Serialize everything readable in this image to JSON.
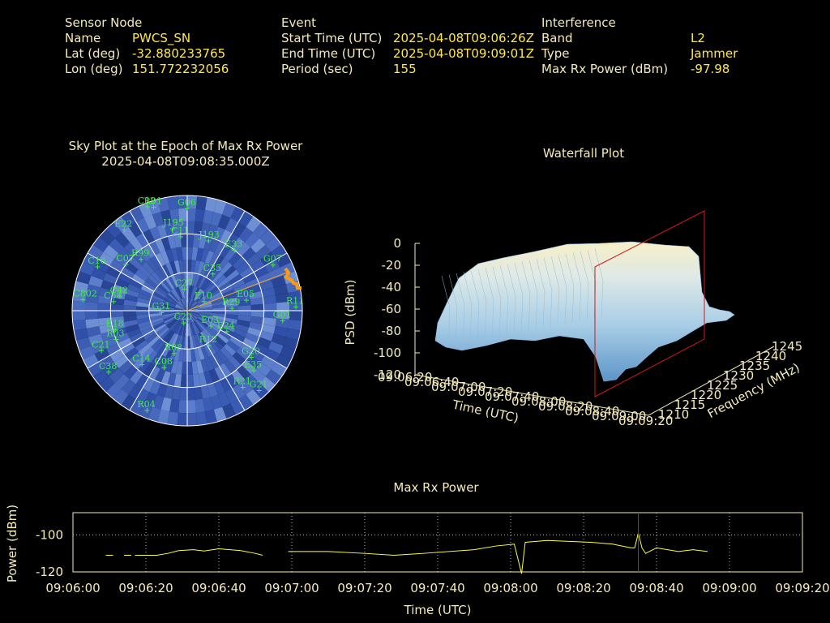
{
  "sensor": {
    "title": "Sensor Node",
    "rows": [
      {
        "label": "Name",
        "value": "PWCS_SN"
      },
      {
        "label": "Lat (deg)",
        "value": "-32.880233765"
      },
      {
        "label": "Lon (deg)",
        "value": "151.772232056"
      }
    ]
  },
  "event": {
    "title": "Event",
    "rows": [
      {
        "label": "Start Time (UTC)",
        "value": "2025-04-08T09:06:26Z"
      },
      {
        "label": "End Time (UTC)",
        "value": "2025-04-08T09:09:01Z"
      },
      {
        "label": "Period (sec)",
        "value": "155"
      }
    ]
  },
  "interference": {
    "title": "Interference",
    "rows": [
      {
        "label": "Band",
        "value": "L2"
      },
      {
        "label": "Type",
        "value": "Jammer"
      },
      {
        "label": "Max Rx Power (dBm)",
        "value": "-97.98"
      }
    ]
  },
  "skyplot": {
    "title": "Sky Plot at the Epoch of Max Rx Power",
    "subtitle": "2025-04-08T09:08:35.000Z",
    "satellites": [
      {
        "id": "G06",
        "az": 0,
        "el": 10
      },
      {
        "id": "R91",
        "az": 342,
        "el": 5
      },
      {
        "id": "C12",
        "az": 339,
        "el": 3
      },
      {
        "id": "E22",
        "az": 322,
        "el": 10
      },
      {
        "id": "J195",
        "az": 350,
        "el": 25
      },
      {
        "id": "C11",
        "az": 355,
        "el": 32
      },
      {
        "id": "J193",
        "az": 17,
        "el": 33
      },
      {
        "id": "G07",
        "az": 62,
        "el": 14
      },
      {
        "id": "E33",
        "az": 38,
        "el": 30
      },
      {
        "id": "C35",
        "az": 35,
        "el": 55
      },
      {
        "id": "E05",
        "az": 80,
        "el": 43
      },
      {
        "id": "R11",
        "az": 88,
        "el": 5
      },
      {
        "id": "G01",
        "az": 96,
        "el": 15
      },
      {
        "id": "E24",
        "az": 118,
        "el": 55
      },
      {
        "id": "R12",
        "az": 148,
        "el": 58
      },
      {
        "id": "G20",
        "az": 126,
        "el": 28
      },
      {
        "id": "E35",
        "az": 132,
        "el": 20
      },
      {
        "id": "R21",
        "az": 144,
        "el": 16
      },
      {
        "id": "G21",
        "az": 138,
        "el": 6
      },
      {
        "id": "R04",
        "az": 202,
        "el": 6
      },
      {
        "id": "C38",
        "az": 232,
        "el": 12
      },
      {
        "id": "C14",
        "az": 220,
        "el": 35
      },
      {
        "id": "C21",
        "az": 245,
        "el": 16
      },
      {
        "id": "R03",
        "az": 248,
        "el": 30
      },
      {
        "id": "E18",
        "az": 255,
        "el": 32
      },
      {
        "id": "C58",
        "az": 277,
        "el": 32
      },
      {
        "id": "C42",
        "az": 282,
        "el": 36
      },
      {
        "id": "C802",
        "az": 276,
        "el": 8
      },
      {
        "id": "C16",
        "az": 296,
        "el": 12
      },
      {
        "id": "C07",
        "az": 307,
        "el": 30
      },
      {
        "id": "R99",
        "az": 318,
        "el": 36
      },
      {
        "id": "C27",
        "az": 353,
        "el": 73
      },
      {
        "id": "E10",
        "az": 62,
        "el": 75
      },
      {
        "id": "R29",
        "az": 87,
        "el": 55
      },
      {
        "id": "C08",
        "az": 202,
        "el": 42
      },
      {
        "id": "R08",
        "az": 197,
        "el": 55
      },
      {
        "id": "G31",
        "az": 266,
        "el": 70
      },
      {
        "id": "E03",
        "az": 123,
        "el": 68
      },
      {
        "id": "C20",
        "az": 196,
        "el": 80
      }
    ]
  },
  "waterfall": {
    "title": "Waterfall Plot",
    "z_label": "PSD (dBm)",
    "z_ticks": [
      "0",
      "-20",
      "-40",
      "-60",
      "-80",
      "-100",
      "-120"
    ],
    "time_label": "Time (UTC)",
    "freq_label": "Frequency (MHz)",
    "freq_ticks": [
      "1210",
      "1215",
      "1220",
      "1225",
      "1230",
      "1235",
      "1240",
      "1245"
    ],
    "time_ticks": [
      "09:06:20",
      "09:06:40",
      "09:07:00",
      "09:07:20",
      "09:07:40",
      "09:08:00",
      "09:08:20",
      "09:08:40",
      "09:09:00",
      "09:09:20"
    ]
  },
  "chart_data": {
    "type": "line",
    "title": "Max Rx Power",
    "xlabel": "Time (UTC)",
    "ylabel": "Power (dBm)",
    "x_ticks": [
      "09:06:00",
      "09:06:20",
      "09:06:40",
      "09:07:00",
      "09:07:20",
      "09:07:40",
      "09:08:00",
      "09:08:20",
      "09:08:40",
      "09:09:00",
      "09:09:20"
    ],
    "y_ticks": [
      -100,
      -120
    ],
    "xlim_sec": [
      0,
      200
    ],
    "ylim": [
      -120,
      -88
    ],
    "grid": true,
    "marker_time_sec": 155,
    "series": [
      {
        "color": "#ffff40",
        "segments": [
          [
            [
              9,
              -111
            ],
            [
              11,
              -111
            ]
          ],
          [
            [
              14,
              -111
            ],
            [
              16,
              -111
            ]
          ],
          [
            [
              17,
              -111
            ],
            [
              23,
              -111
            ],
            [
              26,
              -110
            ],
            [
              29,
              -108.5
            ],
            [
              33,
              -108
            ],
            [
              36,
              -108.7
            ],
            [
              40,
              -107.5
            ],
            [
              46,
              -108.5
            ],
            [
              50,
              -110
            ],
            [
              52,
              -111
            ]
          ],
          [
            [
              59,
              -109
            ],
            [
              70,
              -109
            ],
            [
              80,
              -110
            ],
            [
              88,
              -111
            ],
            [
              96,
              -110
            ],
            [
              110,
              -108
            ],
            [
              116,
              -106
            ],
            [
              121,
              -105
            ],
            [
              123,
              -121
            ],
            [
              124,
              -104
            ],
            [
              130,
              -103
            ],
            [
              142,
              -104
            ],
            [
              148,
              -105
            ],
            [
              153,
              -107
            ],
            [
              154,
              -107
            ],
            [
              155,
              -99
            ],
            [
              156,
              -107
            ],
            [
              157,
              -110
            ],
            [
              160,
              -107
            ],
            [
              166,
              -109
            ],
            [
              170,
              -108
            ],
            [
              174,
              -109
            ]
          ]
        ]
      }
    ]
  }
}
